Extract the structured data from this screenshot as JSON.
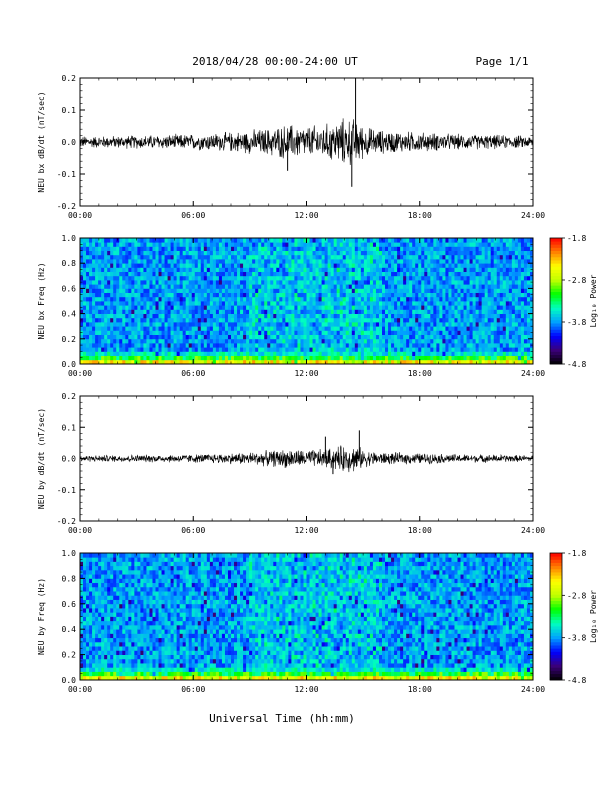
{
  "header": {
    "title": "2018/04/28  00:00-24:00 UT",
    "page": "Page 1/1"
  },
  "xlabel": "Universal Time (hh:mm)",
  "time_ticks": [
    "00:00",
    "06:00",
    "12:00",
    "18:00",
    "24:00"
  ],
  "colors": {
    "trace": "#000000",
    "colormap": [
      "#000000",
      "#3b0078",
      "#0000ff",
      "#00a0ff",
      "#00ffc0",
      "#00ff00",
      "#c0ff00",
      "#ffff00",
      "#ff8000",
      "#ff0000"
    ]
  },
  "chart_data": [
    {
      "type": "line",
      "ylabel": "NEU bx dB/dt (nT/sec)",
      "xlim": [
        0,
        24
      ],
      "ylim": [
        -0.2,
        0.2
      ],
      "yticks": [
        "0.2",
        "0.1",
        "0.0",
        "-0.1",
        "-0.2"
      ],
      "envelope": {
        "hours": [
          0,
          2,
          4,
          6,
          8,
          9,
          10,
          11,
          12,
          13,
          14,
          14.7,
          15,
          16,
          18,
          20,
          22,
          24
        ],
        "amplitude": [
          0.015,
          0.016,
          0.018,
          0.02,
          0.025,
          0.03,
          0.035,
          0.045,
          0.04,
          0.045,
          0.06,
          0.06,
          0.04,
          0.03,
          0.025,
          0.02,
          0.018,
          0.015
        ]
      },
      "spikes": [
        {
          "time": 14.6,
          "value": 0.2
        },
        {
          "time": 14.4,
          "value": -0.14
        },
        {
          "time": 11.0,
          "value": -0.09
        }
      ]
    },
    {
      "type": "heatmap",
      "ylabel": "NEU bx Freq (Hz)",
      "xlim": [
        0,
        24
      ],
      "ylim": [
        0.0,
        1.0
      ],
      "yticks": [
        "1.0",
        "0.8",
        "0.6",
        "0.4",
        "0.2",
        "0.0"
      ],
      "colorbar": {
        "label": "Log₁₀ Power",
        "ticks": [
          "-1.8",
          "-2.8",
          "-3.8",
          "-4.8"
        ],
        "range": [
          -4.8,
          -1.8
        ]
      }
    },
    {
      "type": "line",
      "ylabel": "NEU by dB/dt (nT/sec)",
      "xlim": [
        0,
        24
      ],
      "ylim": [
        -0.2,
        0.2
      ],
      "yticks": [
        "0.2",
        "0.1",
        "0.0",
        "-0.1",
        "-0.2"
      ],
      "envelope": {
        "hours": [
          0,
          2,
          4,
          6,
          8,
          9,
          10,
          11,
          12,
          13,
          14,
          14.7,
          15,
          16,
          18,
          20,
          22,
          24
        ],
        "amplitude": [
          0.008,
          0.009,
          0.01,
          0.011,
          0.014,
          0.017,
          0.02,
          0.025,
          0.022,
          0.025,
          0.035,
          0.035,
          0.022,
          0.016,
          0.014,
          0.011,
          0.01,
          0.008
        ]
      },
      "spikes": [
        {
          "time": 14.8,
          "value": 0.09
        },
        {
          "time": 13.0,
          "value": 0.07
        },
        {
          "time": 13.4,
          "value": -0.05
        }
      ]
    },
    {
      "type": "heatmap",
      "ylabel": "NEU by Freq (Hz)",
      "xlim": [
        0,
        24
      ],
      "ylim": [
        0.0,
        1.0
      ],
      "yticks": [
        "1.0",
        "0.8",
        "0.6",
        "0.4",
        "0.2",
        "0.0"
      ],
      "colorbar": {
        "label": "Log₁₀ Power",
        "ticks": [
          "-1.8",
          "-2.8",
          "-3.8",
          "-4.8"
        ],
        "range": [
          -4.8,
          -1.8
        ]
      }
    }
  ]
}
